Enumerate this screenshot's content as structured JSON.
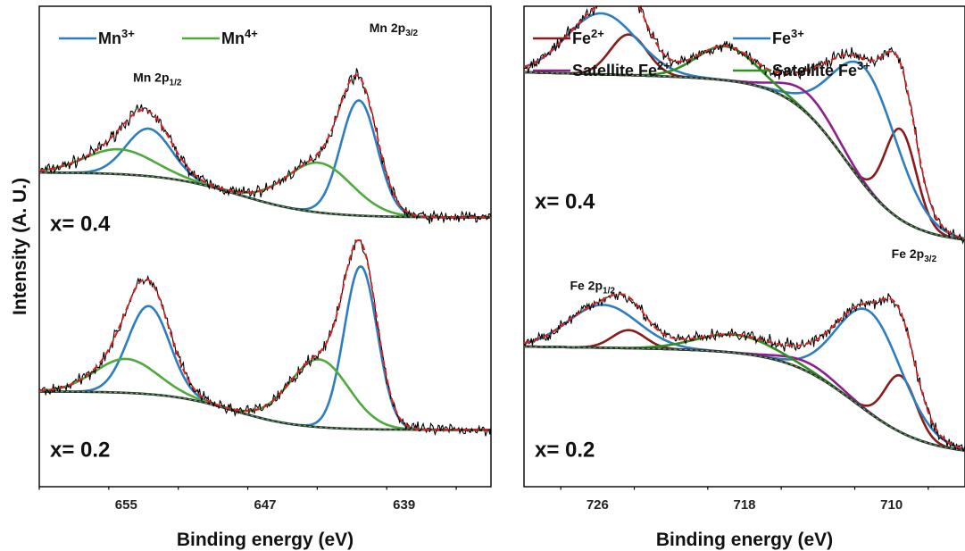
{
  "chart_data": [
    {
      "type": "line",
      "panel": "left",
      "xlabel": "Binding energy (eV)",
      "ylabel": "Intensity (A. U.)",
      "xlim": [
        660,
        634
      ],
      "x_reversed": true,
      "xticks": [
        655,
        647,
        639
      ],
      "ylim": [
        0,
        100
      ],
      "legend": [
        {
          "base": "Mn",
          "sup": "3+",
          "color": "#2e7ebf"
        },
        {
          "base": "Mn",
          "sup": "4+",
          "color": "#4dab3c"
        }
      ],
      "peak_labels": [
        {
          "base": "Mn 2p",
          "sub": "1/2",
          "x": 654.6,
          "y": 88
        },
        {
          "base": "Mn 2p",
          "sub": "3/2",
          "x": 641.0,
          "y": 99
        }
      ],
      "samples": [
        {
          "label": "x= 0.4",
          "label_y": 55,
          "offset": 58,
          "background": {
            "hi": 10,
            "lo": 0,
            "center": 648.5,
            "width": 2.2
          },
          "components": [
            {
              "name": "Mn3+",
              "color": "#2e7ebf",
              "peaks": [
                {
                  "center": 653.7,
                  "height": 10.5,
                  "width": 1.3
                },
                {
                  "center": 641.6,
                  "height": 25.5,
                  "width": 1.05
                }
              ]
            },
            {
              "name": "Mn4+",
              "color": "#4dab3c",
              "peaks": [
                {
                  "center": 655.4,
                  "height": 5.5,
                  "width": 2.0
                },
                {
                  "center": 643.9,
                  "height": 11.0,
                  "width": 1.9
                }
              ]
            }
          ]
        },
        {
          "label": "x= 0.2",
          "label_y": 5,
          "offset": 0,
          "background": {
            "hi": 19.5,
            "lo": 11,
            "center": 648.8,
            "width": 1.9
          },
          "components": [
            {
              "name": "Mn3+",
              "color": "#2e7ebf",
              "peaks": [
                {
                  "center": 653.7,
                  "height": 19.5,
                  "width": 1.2
                },
                {
                  "center": 641.5,
                  "height": 36.0,
                  "width": 0.95
                }
              ]
            },
            {
              "name": "Mn4+",
              "color": "#4dab3c",
              "peaks": [
                {
                  "center": 655.0,
                  "height": 7.5,
                  "width": 1.8
                },
                {
                  "center": 643.9,
                  "height": 15.0,
                  "width": 1.7
                }
              ]
            }
          ]
        }
      ]
    },
    {
      "type": "line",
      "panel": "right",
      "xlabel": "Binding energy (eV)",
      "ylabel": "",
      "xlim": [
        730,
        706
      ],
      "x_reversed": true,
      "xticks": [
        726,
        718,
        710
      ],
      "ylim": [
        0,
        100
      ],
      "legend": [
        {
          "base": "Fe",
          "sup": "2+",
          "color": "#8b1a1a"
        },
        {
          "base": "Fe",
          "sup": "3+",
          "color": "#2e7ebf"
        },
        {
          "base": "Satellite Fe",
          "sup": "2+",
          "color": "#8e1e8e"
        },
        {
          "base": "Satellite Fe",
          "sup": "3+",
          "color": "#2f8f1f"
        }
      ],
      "peak_labels": [
        {
          "base": "Fe 2p",
          "sub": "1/2",
          "x": 727.5,
          "y": 42
        },
        {
          "base": "Fe 2p",
          "sub": "3/2",
          "x": 710.0,
          "y": 49
        }
      ],
      "samples": [
        {
          "label": "x= 0.4",
          "label_y": 60,
          "offset": 0,
          "background": {
            "hi": 87.5,
            "lo": 52.5,
            "center": 712.5,
            "width": 1.6,
            "slope": 1.1
          },
          "components": [
            {
              "name": "Fe2+",
              "color": "#8b1a1a",
              "peaks": [
                {
                  "center": 724.3,
                  "height": 9.0,
                  "width": 1.0
                },
                {
                  "center": 709.5,
                  "height": 20.0,
                  "width": 0.85
                }
              ]
            },
            {
              "name": "Fe3+",
              "color": "#2e7ebf",
              "peaks": [
                {
                  "center": 725.8,
                  "height": 13.5,
                  "width": 1.9
                },
                {
                  "center": 711.4,
                  "height": 26.0,
                  "width": 1.75
                }
              ]
            },
            {
              "name": "Satellite Fe2+",
              "color": "#8e1e8e",
              "peaks": [
                {
                  "center": 714.5,
                  "height": 4.5,
                  "width": 1.5
                }
              ]
            },
            {
              "name": "Satellite Fe3+",
              "color": "#2f8f1f",
              "peaks": [
                {
                  "center": 719.0,
                  "height": 7.5,
                  "width": 1.6
                }
              ]
            }
          ]
        },
        {
          "label": "x= 0.2",
          "label_y": 5,
          "offset": 0,
          "background": {
            "hi": 28.0,
            "lo": 5.5,
            "center": 712.0,
            "width": 1.9,
            "slope": 0.6
          },
          "components": [
            {
              "name": "Fe2+",
              "color": "#8b1a1a",
              "peaks": [
                {
                  "center": 724.3,
                  "height": 4.0,
                  "width": 0.9
                },
                {
                  "center": 709.5,
                  "height": 12.5,
                  "width": 0.85
                }
              ]
            },
            {
              "name": "Fe3+",
              "color": "#2e7ebf",
              "peaks": [
                {
                  "center": 725.7,
                  "height": 9.5,
                  "width": 1.9
                },
                {
                  "center": 711.2,
                  "height": 22.5,
                  "width": 1.75
                }
              ]
            },
            {
              "name": "Satellite Fe2+",
              "color": "#8e1e8e",
              "peaks": [
                {
                  "center": 714.5,
                  "height": 2.0,
                  "width": 1.5
                }
              ]
            },
            {
              "name": "Satellite Fe3+",
              "color": "#2f8f1f",
              "peaks": [
                {
                  "center": 718.5,
                  "height": 4.0,
                  "width": 2.1
                }
              ]
            }
          ]
        }
      ]
    }
  ],
  "colors": {
    "raw": "#000000",
    "fit": "#e02020",
    "background": "#1f3d22"
  }
}
